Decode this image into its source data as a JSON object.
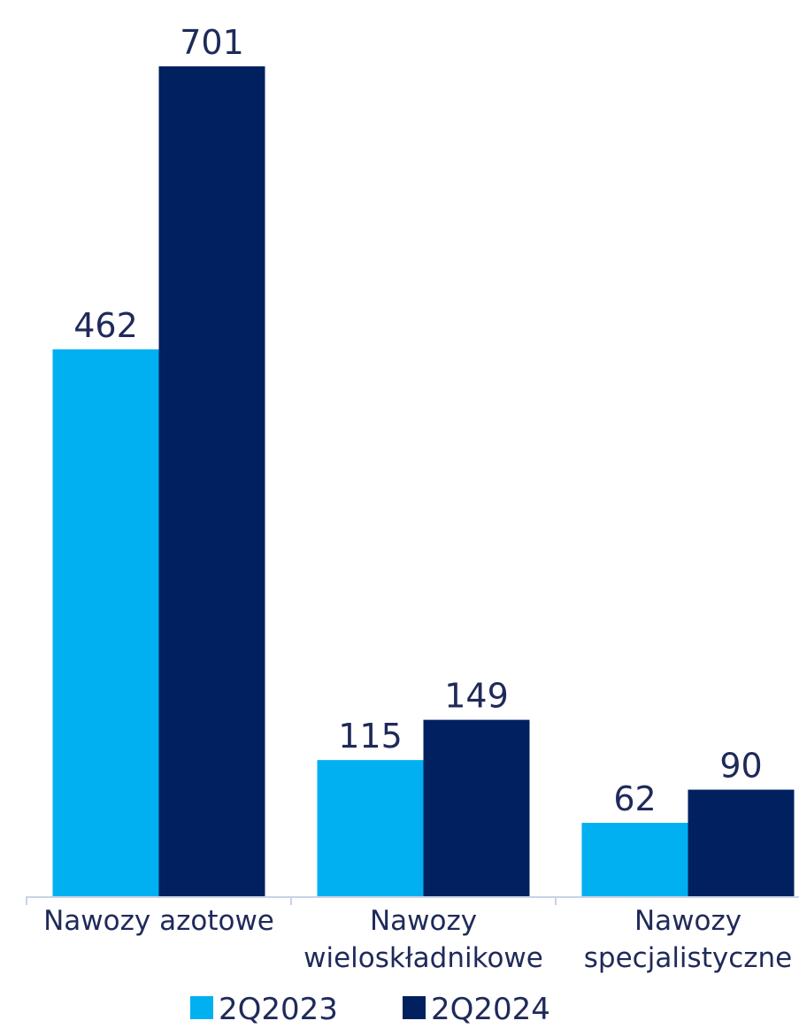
{
  "chart_data": {
    "type": "bar",
    "categories": [
      "Nawozy azotowe",
      "Nawozy wieloskładnikowe",
      "Nawozy specjalistyczne"
    ],
    "series": [
      {
        "name": "2Q2023",
        "color": "#00b0f0",
        "values": [
          462,
          115,
          62
        ]
      },
      {
        "name": "2Q2024",
        "color": "#002060",
        "values": [
          701,
          149,
          90
        ]
      }
    ],
    "legend": "bottom"
  }
}
